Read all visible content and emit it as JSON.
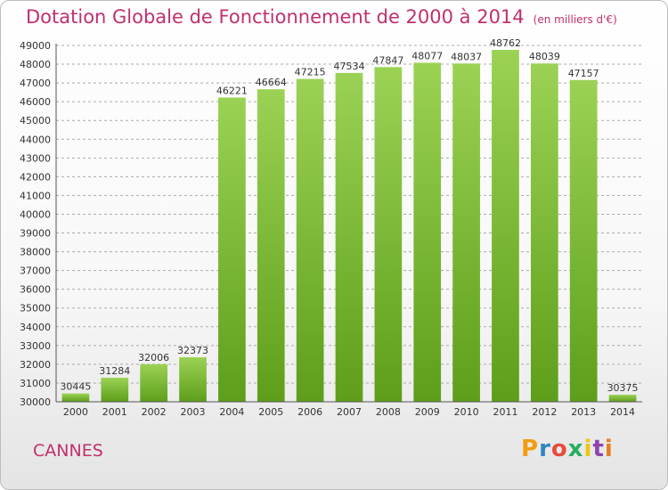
{
  "header": {
    "title": "Dotation Globale de Fonctionnement de 2000 à 2014",
    "unit": "(en milliers d'€)"
  },
  "footer": {
    "city": "CANNES",
    "brand": "Proxiti",
    "brand_colors": [
      "#f39c12",
      "#2e86c1",
      "#e74c3c",
      "#27ae60",
      "#f1c40f",
      "#8e44ad",
      "#e67e22"
    ]
  },
  "colors": {
    "title": "#c0306e",
    "bar_light": "#9bd255",
    "bar_dark": "#5e9e1a",
    "grid": "#ababab",
    "axis_text": "#333333"
  },
  "chart_data": {
    "type": "bar",
    "title": "Dotation Globale de Fonctionnement de 2000 à 2014",
    "unit": "(en milliers d'€)",
    "categories": [
      "2000",
      "2001",
      "2002",
      "2003",
      "2004",
      "2005",
      "2006",
      "2007",
      "2008",
      "2009",
      "2010",
      "2011",
      "2012",
      "2013",
      "2014"
    ],
    "values": [
      30445,
      31284,
      32006,
      32373,
      46221,
      46664,
      47215,
      47534,
      47847,
      48077,
      48037,
      48762,
      48039,
      47157,
      30375
    ],
    "ylim": [
      30000,
      49000
    ],
    "yticks": [
      30000,
      31000,
      32000,
      33000,
      34000,
      35000,
      36000,
      37000,
      38000,
      39000,
      40000,
      41000,
      42000,
      43000,
      44000,
      45000,
      46000,
      47000,
      48000,
      49000
    ],
    "grid": true,
    "legend": "none"
  }
}
